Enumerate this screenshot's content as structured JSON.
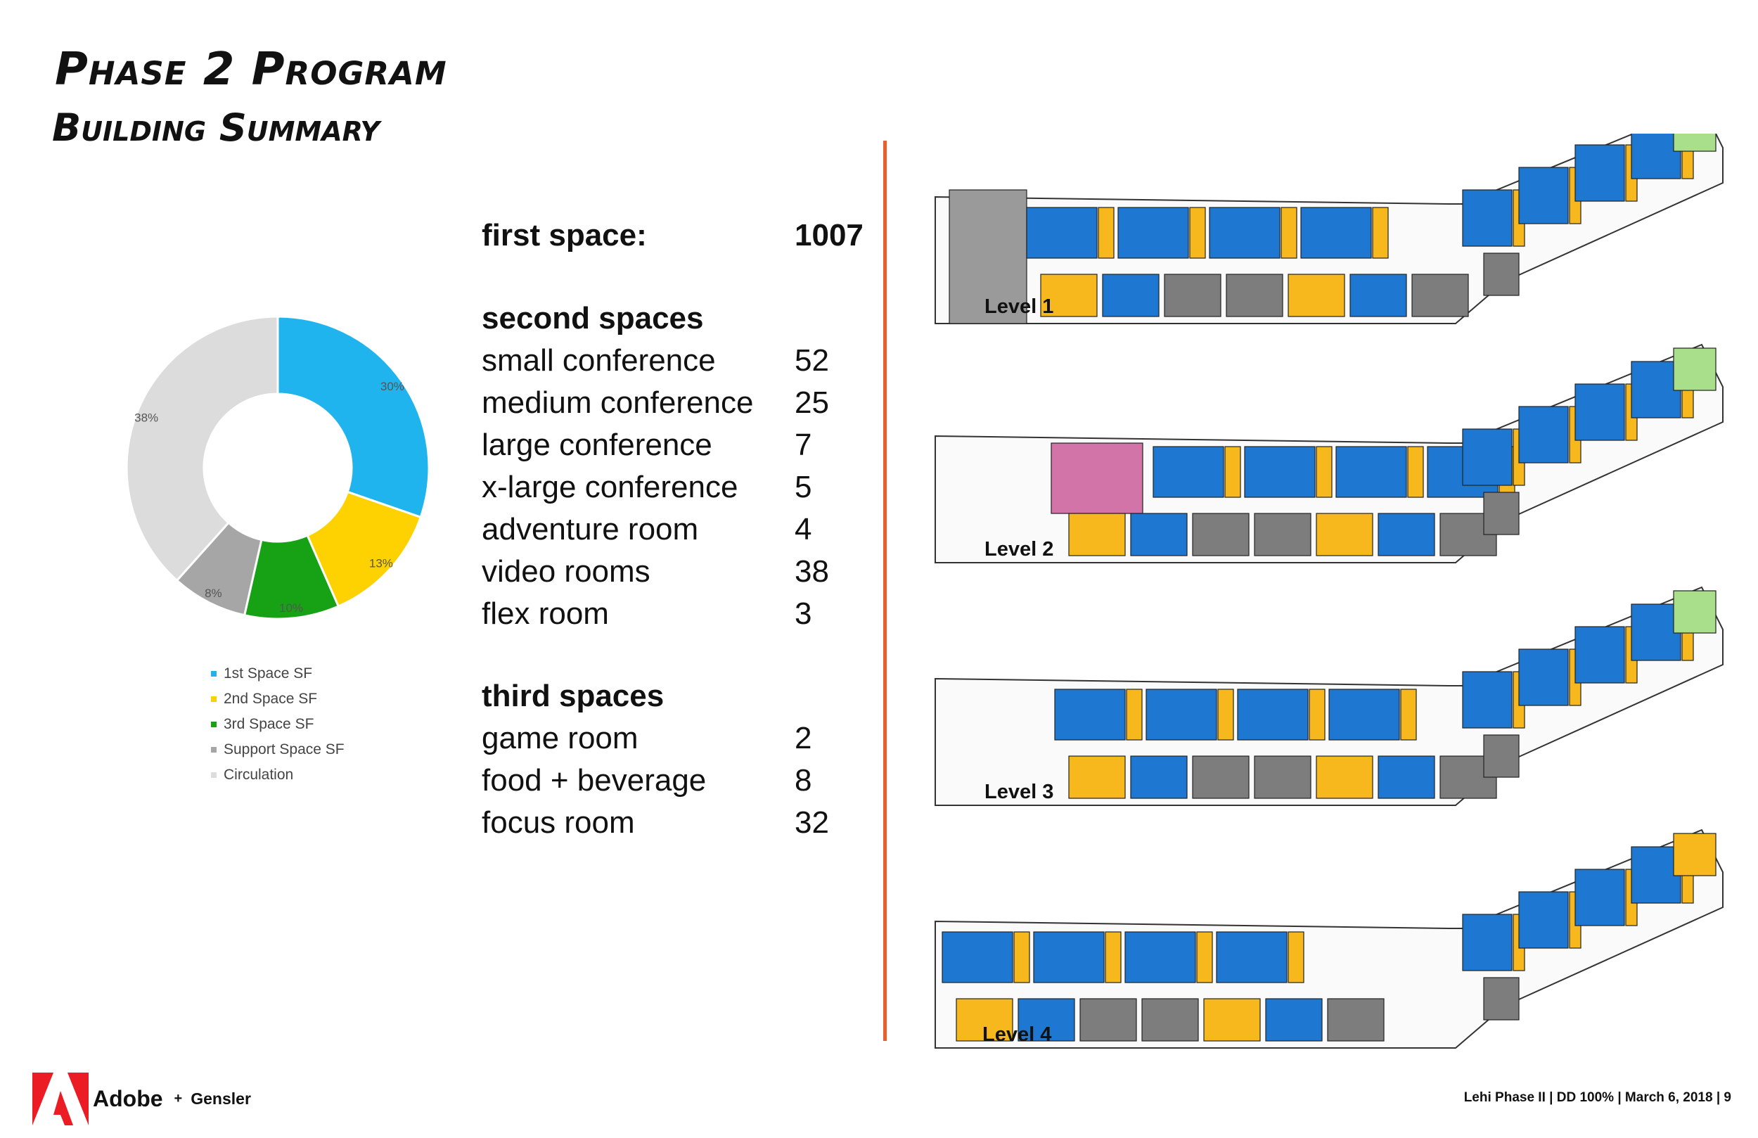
{
  "title": "Phase 2 Program",
  "subtitle": "Building Summary",
  "stats": {
    "first_space_label": "first space:",
    "first_space_value": "1007",
    "second_header": "second spaces",
    "second": [
      {
        "label": "small conference",
        "value": "52"
      },
      {
        "label": "medium conference",
        "value": "25"
      },
      {
        "label": "large conference",
        "value": "7"
      },
      {
        "label": "x-large conference",
        "value": "5"
      },
      {
        "label": "adventure room",
        "value": "4"
      },
      {
        "label": "video rooms",
        "value": "38"
      },
      {
        "label": "flex room",
        "value": "3"
      }
    ],
    "third_header": "third spaces",
    "third": [
      {
        "label": "game room",
        "value": "2"
      },
      {
        "label": "food + beverage",
        "value": "8"
      },
      {
        "label": "focus room",
        "value": "32"
      }
    ]
  },
  "chart_data": {
    "type": "pie",
    "title": "",
    "categories": [
      "1st Space SF",
      "2nd Space SF",
      "3rd Space SF",
      "Support Space SF",
      "Circulation"
    ],
    "values": [
      30,
      13,
      10,
      8,
      38
    ],
    "labels": [
      "30%",
      "13%",
      "10%",
      "8%",
      "38%"
    ],
    "colors": [
      "#1fb4ee",
      "#fed201",
      "#17a216",
      "#a6a6a6",
      "#dcdcdc"
    ],
    "donut": true,
    "legend_placement": "bottom"
  },
  "plans": {
    "level1": "Level 1",
    "level2": "Level 2",
    "level3": "Level 3",
    "level4": "Level 4"
  },
  "footer": {
    "adobe": "Adobe",
    "plus": "+",
    "gensler": "Gensler",
    "right": "Lehi Phase II | DD 100% | March 6, 2018 | 9"
  }
}
